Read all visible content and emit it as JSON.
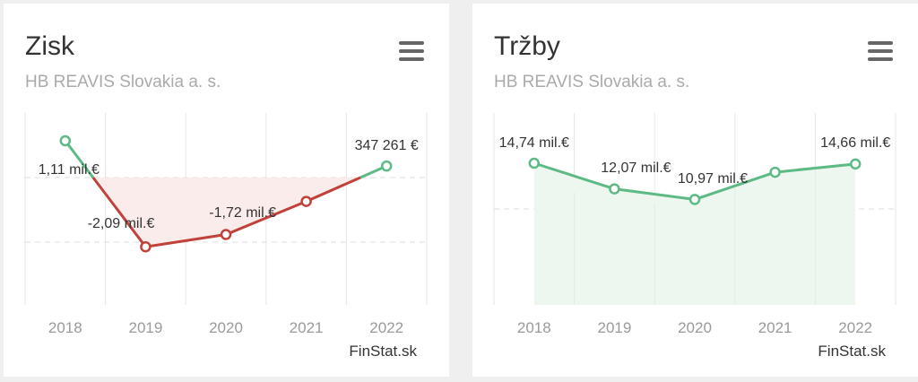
{
  "charts": [
    {
      "title": "Zisk",
      "subtitle": "HB REAVIS Slovakia a. s.",
      "credit": "FinStat.sk",
      "menu_icon": "hamburger-menu-icon"
    },
    {
      "title": "Tržby",
      "subtitle": "HB REAVIS Slovakia a. s.",
      "credit": "FinStat.sk",
      "menu_icon": "hamburger-menu-icon"
    }
  ],
  "chart_data": [
    {
      "type": "line",
      "categories": [
        "2018",
        "2019",
        "2020",
        "2021",
        "2022"
      ],
      "values": [
        1.11,
        -2.09,
        -1.72,
        -0.72,
        0.347261
      ],
      "data_labels": [
        "1,11 mil.€",
        "-2,09 mil.€",
        "-1,72 mil.€",
        "",
        "347 261 €"
      ],
      "title": "Zisk",
      "subtitle": "HB REAVIS Slovakia a. s.",
      "ylim": [
        -3.5,
        2
      ],
      "grid": true,
      "colors": {
        "positive": "#5dba85",
        "negative": "#c0423a",
        "negative_fill": "#fbeaea"
      }
    },
    {
      "type": "area",
      "categories": [
        "2018",
        "2019",
        "2020",
        "2021",
        "2022"
      ],
      "values": [
        14.74,
        12.07,
        10.97,
        13.8,
        14.66
      ],
      "data_labels": [
        "14,74 mil.€",
        "12,07 mil.€",
        "10,97 mil.€",
        "",
        "14,66 mil.€"
      ],
      "title": "Tržby",
      "subtitle": "HB REAVIS Slovakia a. s.",
      "ylim": [
        0,
        20
      ],
      "grid": true,
      "colors": {
        "line": "#5dba85",
        "fill": "#edf7f0"
      }
    }
  ]
}
